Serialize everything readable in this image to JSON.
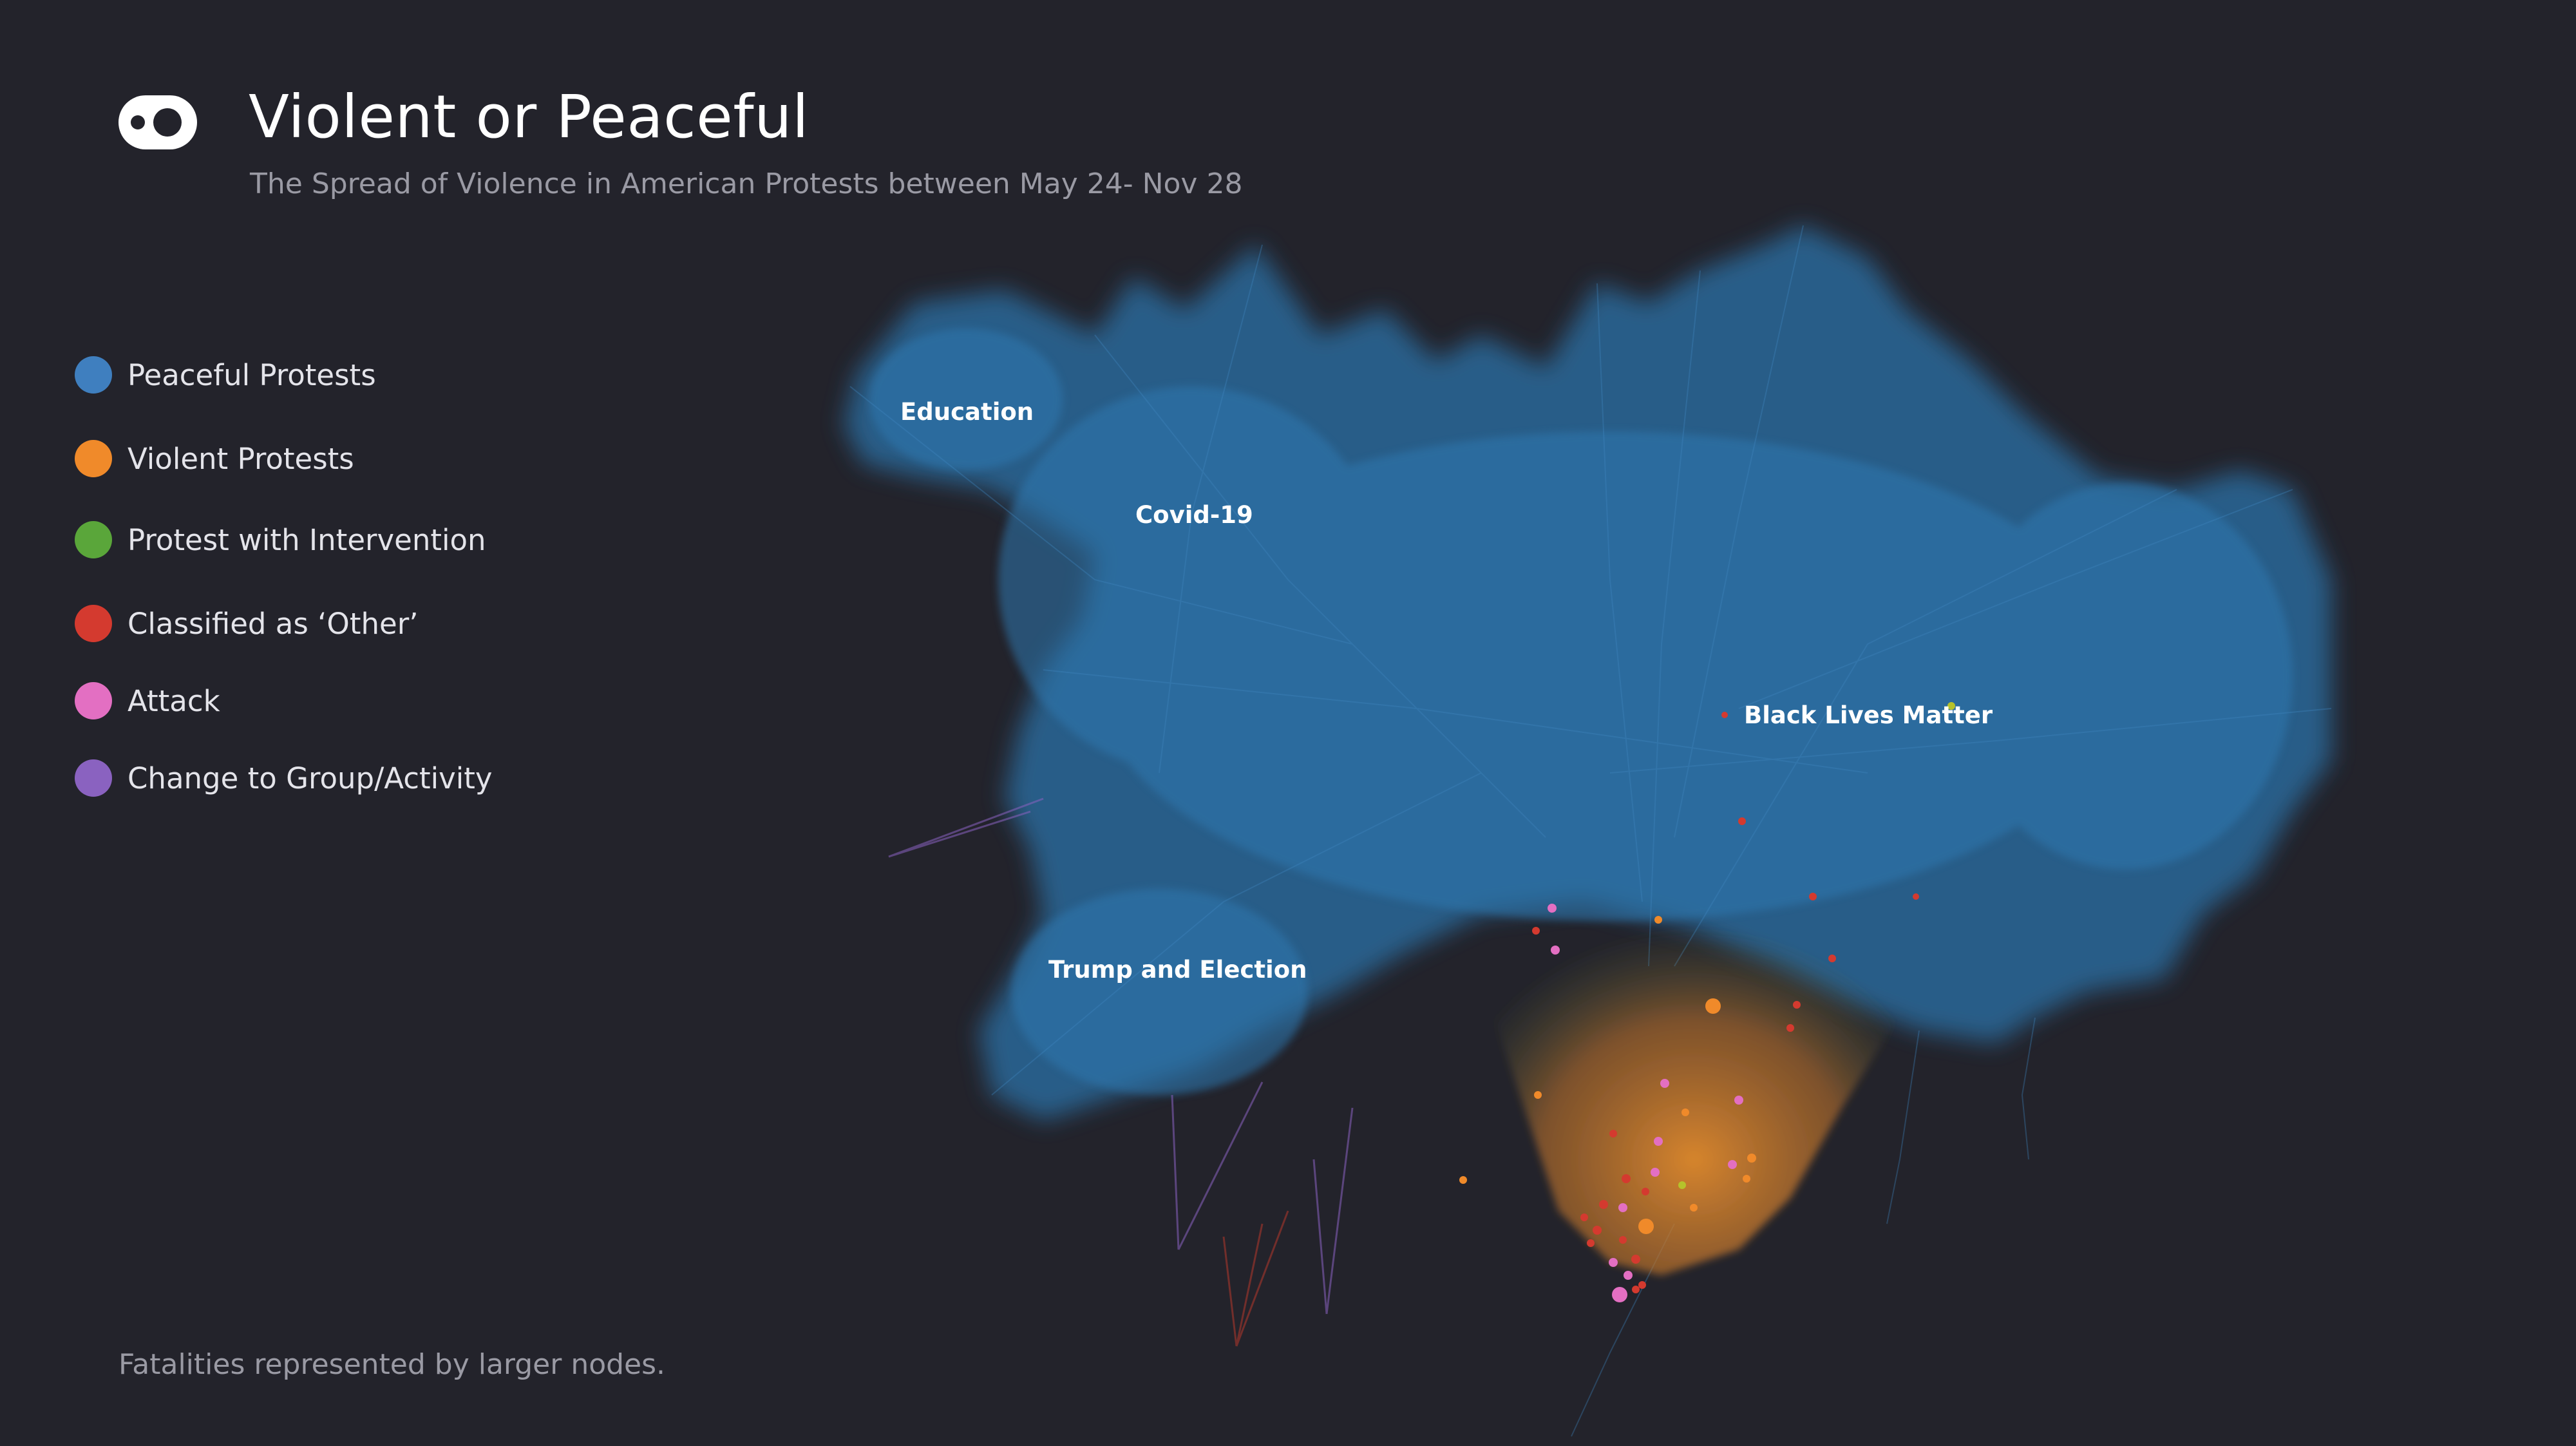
{
  "header": {
    "title": "Violent or Peaceful",
    "subtitle": "The Spread of Violence in American Protests between May 24- Nov 28",
    "logo_icon": "eye-toggle-icon"
  },
  "legend": {
    "items": [
      {
        "label": "Peaceful Protests",
        "color": "#3f7fbf"
      },
      {
        "label": "Violent Protests",
        "color": "#f08a2a"
      },
      {
        "label": "Protest with Intervention",
        "color": "#5aa63a"
      },
      {
        "label": "Classified as ‘Other’",
        "color": "#d43a2f"
      },
      {
        "label": "Attack",
        "color": "#e36fc2"
      },
      {
        "label": "Change to Group/Activity",
        "color": "#8a62c0"
      }
    ]
  },
  "clusters": {
    "education": "Education",
    "covid": "Covid-19",
    "blm": "Black Lives Matter",
    "trump": "Trump and Election"
  },
  "footnote": "Fatalities represented by larger nodes.",
  "colors": {
    "background": "#23232b",
    "network_blue": "#2a6ea3",
    "violent_orange": "#d9782a"
  }
}
